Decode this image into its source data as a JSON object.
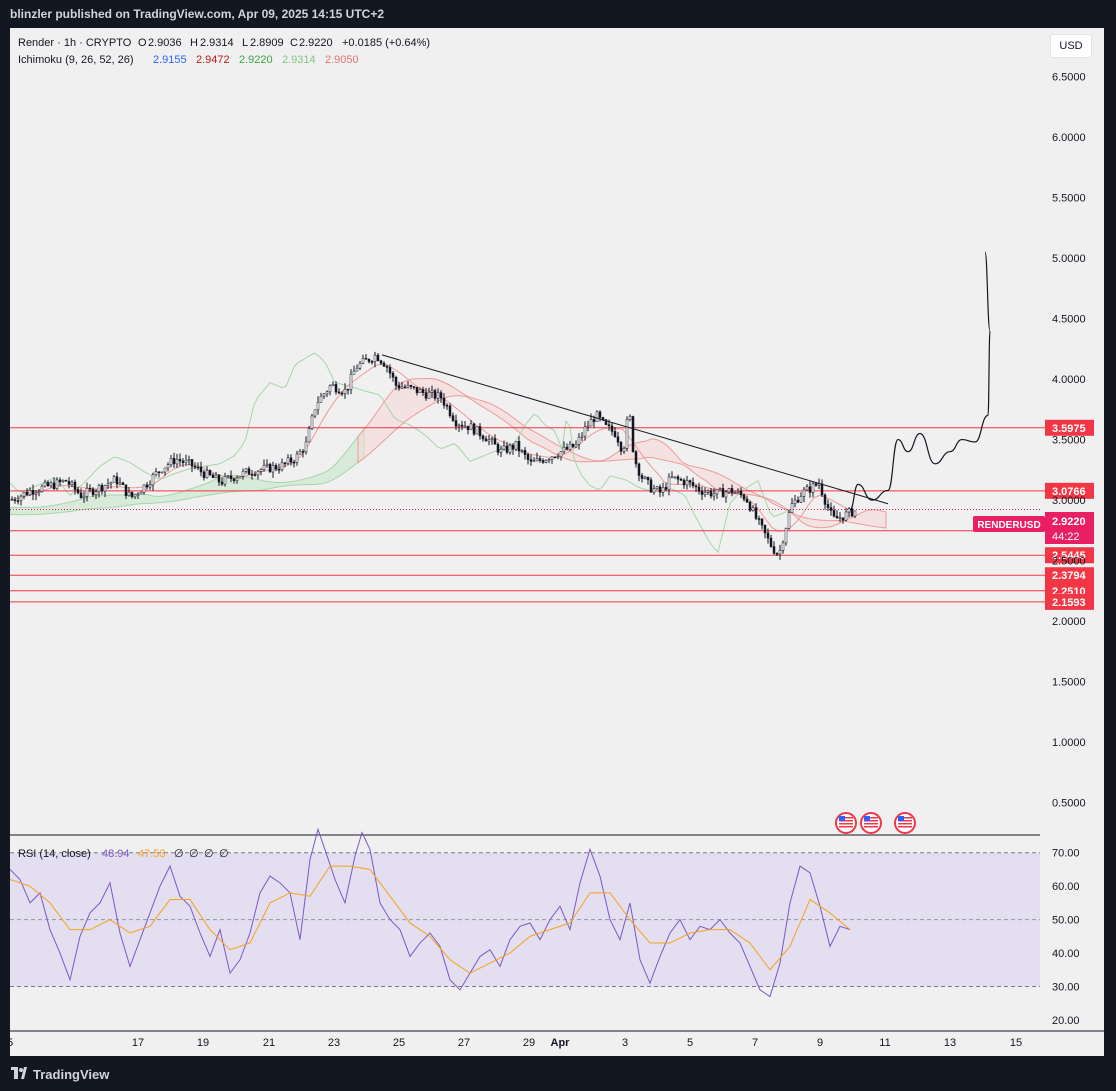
{
  "header": {
    "publish_line": "blinzler published on TradingView.com, Apr 09, 2025 14:15 UTC+2"
  },
  "legend": {
    "symbol": "Render · 1h · CRYPTO",
    "open_label": "O",
    "open": "2.9036",
    "high_label": "H",
    "high": "2.9314",
    "low_label": "L",
    "low": "2.8909",
    "close_label": "C",
    "close": "2.9220",
    "change": "+0.0185 (+0.64%)",
    "ichimoku_label": "Ichimoku (9, 26, 52, 26)",
    "ichimoku_values": [
      "2.9155",
      "2.9472",
      "2.9220",
      "2.9314",
      "2.9050"
    ],
    "rsi_label": "RSI (14, close)",
    "rsi_value": "48.94",
    "rsi_ma_value": "47.53",
    "rsi_extra": [
      "∅",
      "∅",
      "∅",
      "∅"
    ]
  },
  "currency_button": "USD",
  "colors": {
    "tenkan": "#2962ff",
    "kijun": "#b71c1c",
    "chikou": "#43a047",
    "span_a": "#a5d6a7",
    "span_b": "#ef9a9a",
    "level_line": "#f23645",
    "level_badge": "#f23645",
    "price_badge": "#e91e63",
    "rsi_line": "#7e57c2",
    "rsi_ma": "#f7a21b",
    "rsi_band": "#e3dff0"
  },
  "price_badge": {
    "symbol": "RENDERUSD",
    "price": "2.9220",
    "countdown": "44:22"
  },
  "footer": {
    "brand": "TradingView"
  },
  "event_icons": [
    "us-flag-icon",
    "us-flag-icon",
    "us-flag-icon"
  ],
  "chart_data": [
    {
      "type": "candlestick",
      "title": "Render · 1h · CRYPTO",
      "x_tick_labels": [
        "5",
        "17",
        "19",
        "21",
        "23",
        "25",
        "27",
        "29",
        "Apr",
        "3",
        "5",
        "7",
        "9",
        "11",
        "13",
        "15"
      ],
      "y_tick_labels": [
        "0.5000",
        "1.0000",
        "1.5000",
        "2.0000",
        "2.5000",
        "3.0000",
        "3.5000",
        "4.0000",
        "4.5000",
        "5.0000",
        "5.5000",
        "6.0000",
        "6.5000"
      ],
      "ylim": [
        0.25,
        6.9
      ],
      "price_path": [
        [
          0,
          3.0
        ],
        [
          20,
          3.08
        ],
        [
          40,
          3.12
        ],
        [
          55,
          3.16
        ],
        [
          70,
          3.04
        ],
        [
          90,
          3.11
        ],
        [
          105,
          3.17
        ],
        [
          120,
          3.02
        ],
        [
          135,
          3.13
        ],
        [
          150,
          3.26
        ],
        [
          165,
          3.34
        ],
        [
          180,
          3.29
        ],
        [
          195,
          3.21
        ],
        [
          210,
          3.15
        ],
        [
          225,
          3.2
        ],
        [
          240,
          3.24
        ],
        [
          255,
          3.26
        ],
        [
          270,
          3.28
        ],
        [
          285,
          3.35
        ],
        [
          295,
          3.46
        ],
        [
          305,
          3.8
        ],
        [
          320,
          3.95
        ],
        [
          335,
          3.9
        ],
        [
          345,
          4.1
        ],
        [
          355,
          4.15
        ],
        [
          365,
          4.2
        ],
        [
          375,
          4.12
        ],
        [
          385,
          3.95
        ],
        [
          400,
          3.92
        ],
        [
          415,
          3.88
        ],
        [
          430,
          3.85
        ],
        [
          445,
          3.65
        ],
        [
          460,
          3.6
        ],
        [
          475,
          3.52
        ],
        [
          490,
          3.4
        ],
        [
          505,
          3.45
        ],
        [
          520,
          3.3
        ],
        [
          535,
          3.35
        ],
        [
          550,
          3.4
        ],
        [
          565,
          3.45
        ],
        [
          575,
          3.6
        ],
        [
          585,
          3.7
        ],
        [
          595,
          3.6
        ],
        [
          605,
          3.55
        ],
        [
          612,
          3.4
        ],
        [
          618,
          3.75
        ],
        [
          623,
          3.35
        ],
        [
          630,
          3.2
        ],
        [
          640,
          3.1
        ],
        [
          650,
          3.06
        ],
        [
          660,
          3.18
        ],
        [
          675,
          3.15
        ],
        [
          690,
          3.08
        ],
        [
          705,
          3.05
        ],
        [
          720,
          3.08
        ],
        [
          735,
          3.02
        ],
        [
          745,
          2.85
        ],
        [
          755,
          2.7
        ],
        [
          762,
          2.6
        ],
        [
          768,
          2.55
        ],
        [
          773,
          2.72
        ],
        [
          780,
          2.95
        ],
        [
          790,
          3.05
        ],
        [
          800,
          3.1
        ],
        [
          808,
          3.14
        ],
        [
          815,
          2.98
        ],
        [
          822,
          2.84
        ],
        [
          830,
          2.86
        ],
        [
          840,
          2.9
        ],
        [
          848,
          2.92
        ]
      ],
      "trendline": [
        [
          372,
          4.2
        ],
        [
          878,
          2.97
        ]
      ],
      "horizontal_levels": [
        "3.5975",
        "3.0766",
        "2.7464",
        "2.5445",
        "2.3794",
        "2.2510",
        "2.1593"
      ],
      "last_price": 2.922,
      "projection_path": [
        [
          840,
          2.92
        ],
        [
          848,
          3.13
        ],
        [
          862,
          3.0
        ],
        [
          878,
          3.08
        ],
        [
          888,
          3.5
        ],
        [
          898,
          3.4
        ],
        [
          910,
          3.55
        ],
        [
          925,
          3.3
        ],
        [
          940,
          3.4
        ],
        [
          952,
          3.5
        ],
        [
          965,
          3.48
        ],
        [
          978,
          3.7
        ],
        [
          980,
          4.4
        ],
        [
          975,
          5.05
        ]
      ],
      "ichimoku_cloud_x_range": [
        0,
        878
      ]
    },
    {
      "type": "line",
      "title": "RSI (14, close)",
      "y_tick_labels": [
        "20.00",
        "30.00",
        "40.00",
        "50.00",
        "60.00",
        "70.00"
      ],
      "ylim": [
        17,
        75
      ],
      "bands": [
        30,
        70
      ],
      "midline": 50,
      "series": [
        {
          "name": "RSI",
          "values": [
            [
              0,
              65
            ],
            [
              10,
              62
            ],
            [
              20,
              55
            ],
            [
              30,
              58
            ],
            [
              40,
              47
            ],
            [
              50,
              40
            ],
            [
              60,
              32
            ],
            [
              70,
              45
            ],
            [
              80,
              52
            ],
            [
              90,
              55
            ],
            [
              100,
              61
            ],
            [
              110,
              46
            ],
            [
              120,
              36
            ],
            [
              130,
              44
            ],
            [
              140,
              52
            ],
            [
              150,
              60
            ],
            [
              160,
              66
            ],
            [
              170,
              57
            ],
            [
              180,
              54
            ],
            [
              190,
              46
            ],
            [
              200,
              39
            ],
            [
              210,
              47
            ],
            [
              220,
              34
            ],
            [
              230,
              38
            ],
            [
              240,
              46
            ],
            [
              250,
              58
            ],
            [
              260,
              63
            ],
            [
              270,
              61
            ],
            [
              280,
              58
            ],
            [
              290,
              44
            ],
            [
              300,
              68
            ],
            [
              308,
              77
            ],
            [
              316,
              70
            ],
            [
              325,
              62
            ],
            [
              335,
              55
            ],
            [
              345,
              69
            ],
            [
              352,
              76
            ],
            [
              360,
              71
            ],
            [
              370,
              55
            ],
            [
              380,
              50
            ],
            [
              390,
              47
            ],
            [
              400,
              39
            ],
            [
              410,
              43
            ],
            [
              420,
              46
            ],
            [
              430,
              42
            ],
            [
              440,
              32
            ],
            [
              450,
              29
            ],
            [
              460,
              34
            ],
            [
              470,
              39
            ],
            [
              480,
              41
            ],
            [
              490,
              36
            ],
            [
              500,
              44
            ],
            [
              510,
              48
            ],
            [
              520,
              49
            ],
            [
              530,
              44
            ],
            [
              540,
              50
            ],
            [
              550,
              54
            ],
            [
              560,
              47
            ],
            [
              570,
              61
            ],
            [
              580,
              71
            ],
            [
              590,
              63
            ],
            [
              600,
              50
            ],
            [
              610,
              44
            ],
            [
              620,
              55
            ],
            [
              630,
              38
            ],
            [
              640,
              31
            ],
            [
              650,
              39
            ],
            [
              660,
              46
            ],
            [
              670,
              50
            ],
            [
              680,
              44
            ],
            [
              690,
              48
            ],
            [
              700,
              47
            ],
            [
              710,
              50
            ],
            [
              720,
              46
            ],
            [
              730,
              43
            ],
            [
              740,
              36
            ],
            [
              750,
              29
            ],
            [
              760,
              27
            ],
            [
              770,
              37
            ],
            [
              780,
              55
            ],
            [
              790,
              66
            ],
            [
              800,
              64
            ],
            [
              810,
              54
            ],
            [
              820,
              42
            ],
            [
              830,
              48
            ],
            [
              840,
              47
            ]
          ]
        },
        {
          "name": "RSI-based MA",
          "values": [
            [
              0,
              62
            ],
            [
              20,
              60
            ],
            [
              40,
              55
            ],
            [
              60,
              47
            ],
            [
              80,
              47
            ],
            [
              100,
              50
            ],
            [
              120,
              46
            ],
            [
              140,
              48
            ],
            [
              160,
              56
            ],
            [
              180,
              56
            ],
            [
              200,
              47
            ],
            [
              220,
              41
            ],
            [
              240,
              43
            ],
            [
              260,
              55
            ],
            [
              280,
              58
            ],
            [
              300,
              57
            ],
            [
              320,
              66
            ],
            [
              340,
              66
            ],
            [
              360,
              65
            ],
            [
              380,
              57
            ],
            [
              400,
              49
            ],
            [
              420,
              45
            ],
            [
              440,
              38
            ],
            [
              460,
              34
            ],
            [
              480,
              37
            ],
            [
              500,
              40
            ],
            [
              520,
              45
            ],
            [
              540,
              47
            ],
            [
              560,
              49
            ],
            [
              580,
              58
            ],
            [
              600,
              58
            ],
            [
              620,
              50
            ],
            [
              640,
              43
            ],
            [
              660,
              43
            ],
            [
              680,
              46
            ],
            [
              700,
              47
            ],
            [
              720,
              47
            ],
            [
              740,
              43
            ],
            [
              760,
              35
            ],
            [
              780,
              42
            ],
            [
              800,
              56
            ],
            [
              820,
              52
            ],
            [
              840,
              47
            ]
          ]
        }
      ]
    }
  ]
}
